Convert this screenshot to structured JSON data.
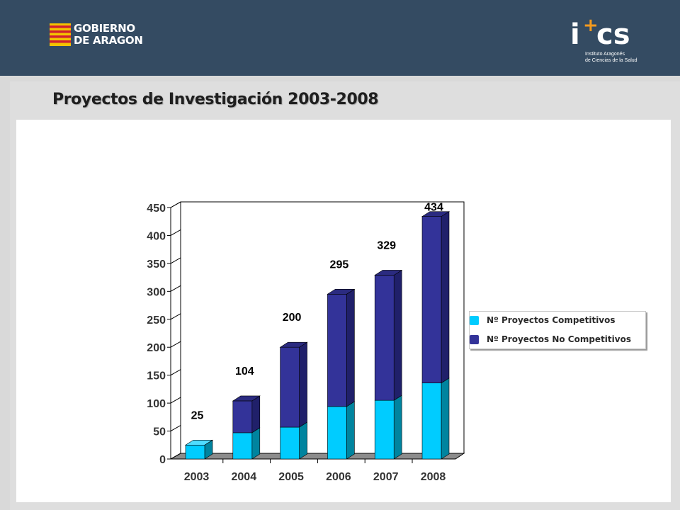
{
  "header": {
    "gov_logo": {
      "line1": "GOBIERNO",
      "line2": "DE ARAGON"
    },
    "ics_logo": {
      "mark_i": "i",
      "mark_plus": "+",
      "mark_cs": "cs",
      "line1": "Instituto Aragonés",
      "line2": "de Ciencias de la Salud"
    }
  },
  "title": "Proyectos de Investigación 2003-2008",
  "colors": {
    "header_bg": "#344b62",
    "competitivos": "#00ccff",
    "no_competitivos": "#333399",
    "accent_orange": "#f39a1e"
  },
  "chart_data": {
    "type": "bar",
    "stacked": true,
    "three_d": true,
    "categories": [
      "2003",
      "2004",
      "2005",
      "2006",
      "2007",
      "2008"
    ],
    "series": [
      {
        "name": "Nº Proyectos Competitivos",
        "values": [
          25,
          47,
          57,
          94,
          105,
          136
        ],
        "color": "#00ccff"
      },
      {
        "name": "Nº Proyectos No Competitivos",
        "values": [
          0,
          57,
          143,
          201,
          224,
          298
        ],
        "color": "#333399"
      }
    ],
    "totals": [
      25,
      104,
      200,
      295,
      329,
      434
    ],
    "total_labels": [
      "25",
      "104",
      "200",
      "295",
      "329",
      "434"
    ],
    "ylim": [
      0,
      450
    ],
    "yticks": [
      0,
      50,
      100,
      150,
      200,
      250,
      300,
      350,
      400,
      450
    ],
    "ytick_labels": [
      "0",
      "50",
      "100",
      "150",
      "200",
      "250",
      "300",
      "350",
      "400",
      "450"
    ],
    "legend_position": "right",
    "grid": false
  }
}
